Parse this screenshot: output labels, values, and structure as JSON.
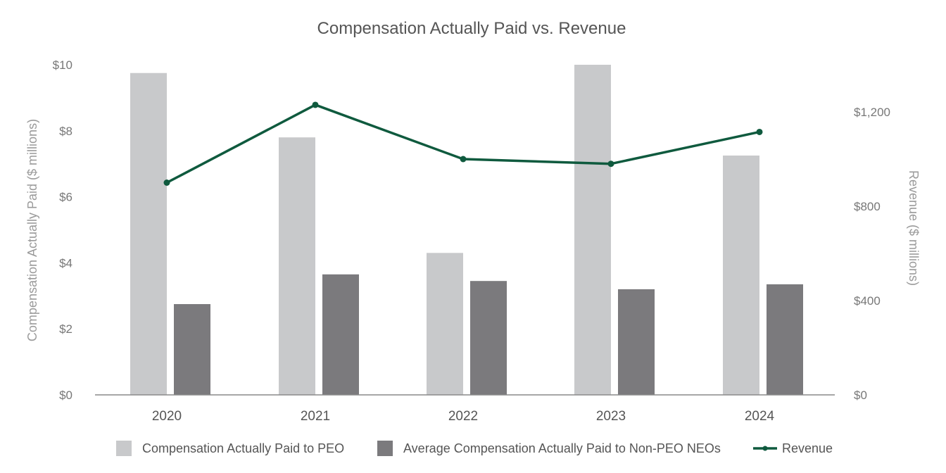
{
  "chart_data": {
    "type": "bar",
    "title": "Compensation Actually Paid vs. Revenue",
    "categories": [
      "2020",
      "2021",
      "2022",
      "2023",
      "2024"
    ],
    "y_left": {
      "label": "Compensation Actually Paid ($ millions)",
      "range": [
        0,
        10
      ],
      "ticks": [
        0,
        2,
        4,
        6,
        8,
        10
      ],
      "tick_labels": [
        "$0",
        "$2",
        "$4",
        "$6",
        "$8",
        "$10"
      ]
    },
    "y_right": {
      "label": "Revenue ($ millions)",
      "range": [
        0,
        1400
      ],
      "ticks": [
        0,
        400,
        800,
        1200
      ],
      "tick_labels": [
        "$0",
        "$400",
        "$800",
        "$1,200"
      ]
    },
    "series": [
      {
        "name": "Compensation Actually Paid to PEO",
        "type": "bar",
        "axis": "left",
        "color": "#c8c9cb",
        "values": [
          9.75,
          7.8,
          4.3,
          10.0,
          7.25
        ]
      },
      {
        "name": "Average Compensation Actually Paid to Non-PEO NEOs",
        "type": "bar",
        "axis": "left",
        "color": "#7b7a7d",
        "values": [
          2.75,
          3.65,
          3.45,
          3.2,
          3.35
        ]
      },
      {
        "name": "Revenue",
        "type": "line",
        "axis": "right",
        "color": "#0f5a3e",
        "values": [
          900,
          1230,
          1000,
          980,
          1115
        ]
      }
    ],
    "legend_position": "bottom",
    "grid": false
  }
}
